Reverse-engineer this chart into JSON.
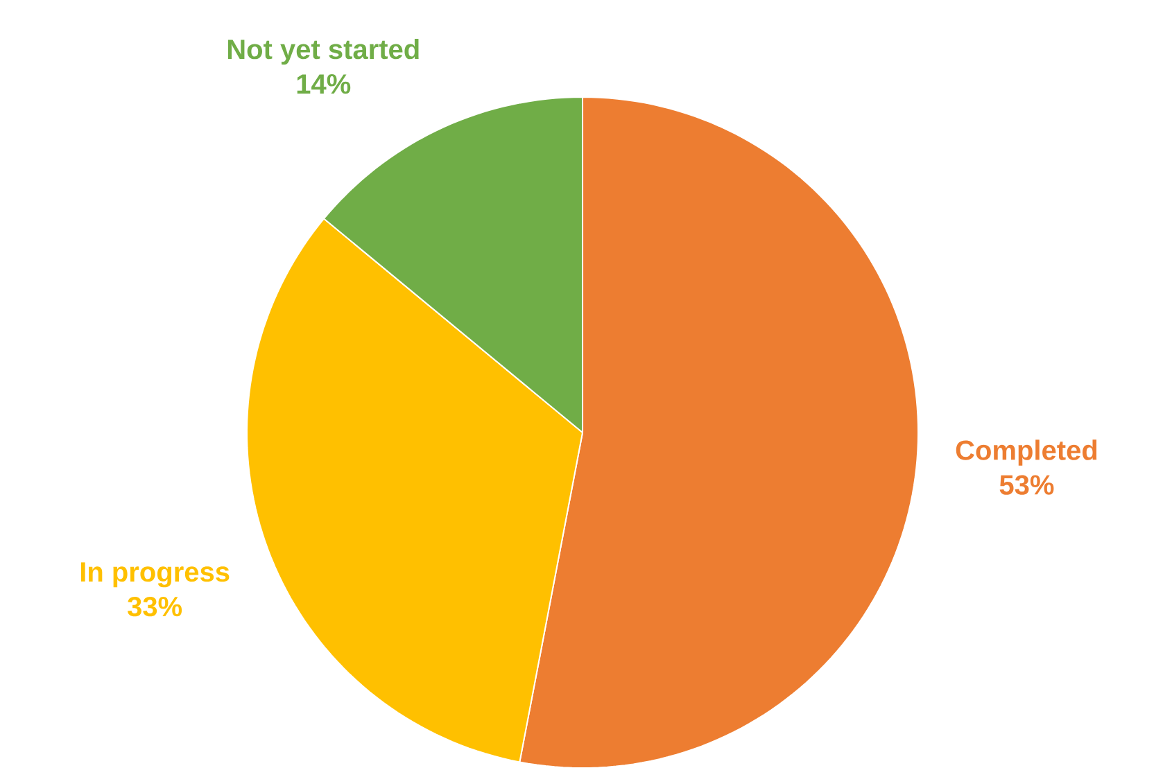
{
  "chart_data": {
    "type": "pie",
    "categories": [
      "Completed",
      "In progress",
      "Not yet started"
    ],
    "values": [
      53,
      33,
      14
    ],
    "colors": [
      "#ed7d31",
      "#ffc000",
      "#70ad47"
    ],
    "value_labels": [
      "53%",
      "33%",
      "14%"
    ],
    "legend": false
  }
}
